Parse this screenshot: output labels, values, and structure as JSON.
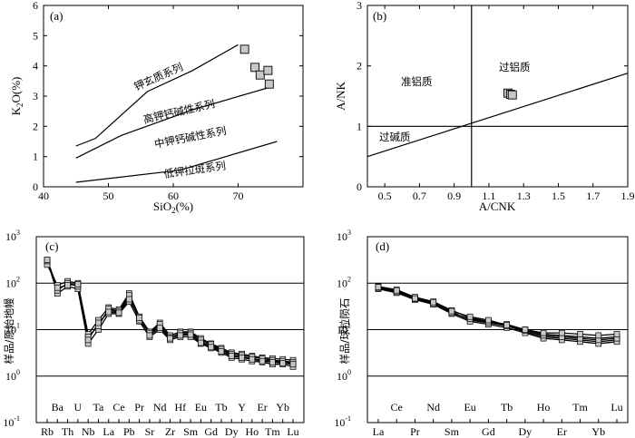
{
  "chart_data": [
    {
      "panel": "(a)",
      "type": "scatter",
      "xlabel": "SiO2(%)",
      "ylabel": "K2O(%)",
      "xlim": [
        40,
        80
      ],
      "ylim": [
        0,
        6
      ],
      "xticks": [
        40,
        50,
        60,
        70
      ],
      "yticks": [
        0,
        1,
        2,
        3,
        4,
        5,
        6
      ],
      "field_labels": [
        "钾玄质系列",
        "高钾钙碱性系列",
        "中钾钙碱性系列",
        "低钾拉斑系列"
      ],
      "boundaries": [
        {
          "points": [
            [
              45,
              1.35
            ],
            [
              48,
              1.6
            ],
            [
              56,
              3.15
            ],
            [
              63,
              3.85
            ],
            [
              70,
              4.7
            ]
          ]
        },
        {
          "points": [
            [
              45,
              0.95
            ],
            [
              52,
              1.7
            ],
            [
              63,
              2.55
            ],
            [
              75,
              3.3
            ]
          ]
        },
        {
          "points": [
            [
              45,
              0.15
            ],
            [
              61,
              0.55
            ],
            [
              76,
              1.5
            ]
          ]
        }
      ],
      "points": [
        [
          71,
          4.55
        ],
        [
          72.6,
          3.95
        ],
        [
          73.4,
          3.7
        ],
        [
          74.6,
          3.85
        ],
        [
          74.8,
          3.4
        ]
      ]
    },
    {
      "panel": "(b)",
      "type": "scatter",
      "xlabel": "A/CNK",
      "ylabel": "A/NK",
      "xlim": [
        0.4,
        1.9
      ],
      "ylim": [
        0,
        3
      ],
      "xticks": [
        0.5,
        0.7,
        0.9,
        1.1,
        1.3,
        1.5,
        1.7,
        1.9
      ],
      "yticks": [
        0,
        1,
        2,
        3
      ],
      "field_labels": [
        "准铝质",
        "过铝质",
        "过碱质"
      ],
      "boundaries": [
        {
          "points": [
            [
              1.0,
              0
            ],
            [
              1.0,
              3
            ]
          ]
        },
        {
          "points": [
            [
              0.4,
              1.0
            ],
            [
              1.9,
              1.0
            ]
          ]
        },
        {
          "points": [
            [
              0.4,
              0.5
            ],
            [
              1.9,
              1.88
            ]
          ]
        }
      ],
      "points": [
        [
          1.21,
          1.55
        ],
        [
          1.225,
          1.53
        ],
        [
          1.235,
          1.52
        ]
      ]
    },
    {
      "panel": "(c)",
      "type": "line",
      "ylabel": "样品/原始地幔",
      "yscale": "log",
      "ylim": [
        0.1,
        1000
      ],
      "yticks": [
        "10-1",
        "100",
        "101",
        "102",
        "103"
      ],
      "categories": [
        "Rb",
        "Ba",
        "Th",
        "U",
        "Nb",
        "Ta",
        "La",
        "Ce",
        "Pb",
        "Pr",
        "Sr",
        "Nd",
        "Zr",
        "Hf",
        "Sm",
        "Eu",
        "Gd",
        "Tb",
        "Dy",
        "Y",
        "Ho",
        "Er",
        "Tm",
        "Yb",
        "Lu"
      ],
      "series": [
        {
          "values": [
            310,
            60,
            85,
            75,
            5,
            10,
            22,
            22,
            40,
            15,
            7,
            10,
            6,
            7,
            7,
            5,
            4,
            3.2,
            2.5,
            2.3,
            2.1,
            2,
            1.8,
            1.8,
            1.6
          ]
        },
        {
          "values": [
            280,
            75,
            95,
            90,
            6.5,
            13,
            26,
            24,
            50,
            17,
            8,
            12,
            7,
            8,
            8,
            5.5,
            4.5,
            3.6,
            2.8,
            2.6,
            2.4,
            2.2,
            2.1,
            2,
            1.9
          ]
        },
        {
          "values": [
            250,
            90,
            110,
            100,
            8,
            16,
            30,
            27,
            60,
            19,
            9,
            14,
            7.5,
            9,
            9,
            6.5,
            5,
            4,
            3.2,
            3,
            2.7,
            2.5,
            2.4,
            2.3,
            2.2
          ]
        },
        {
          "values": [
            300,
            70,
            100,
            85,
            7,
            12,
            28,
            25,
            55,
            16,
            8.5,
            13,
            6.8,
            8.5,
            8.5,
            6,
            4.8,
            3.8,
            3,
            2.8,
            2.6,
            2.4,
            2.2,
            2.1,
            2
          ]
        },
        {
          "values": [
            320,
            80,
            90,
            95,
            6,
            14,
            24,
            23,
            45,
            18,
            7.5,
            11,
            6.5,
            7.5,
            7.8,
            5.2,
            4.2,
            3.4,
            2.7,
            2.5,
            2.3,
            2.1,
            2,
            1.9,
            1.8
          ]
        }
      ]
    },
    {
      "panel": "(d)",
      "type": "line",
      "ylabel": "样品/球粒陨石",
      "yscale": "log",
      "ylim": [
        0.1,
        1000
      ],
      "yticks": [
        "10-1",
        "100",
        "101",
        "102",
        "103"
      ],
      "categories": [
        "La",
        "Ce",
        "Pr",
        "Nd",
        "Sm",
        "Eu",
        "Gd",
        "Tb",
        "Dy",
        "Ho",
        "Er",
        "Tm",
        "Yb",
        "Lu"
      ],
      "series": [
        {
          "values": [
            80,
            68,
            48,
            38,
            24,
            16,
            14,
            12,
            9,
            7,
            6.5,
            6,
            5.5,
            6
          ]
        },
        {
          "values": [
            75,
            62,
            44,
            35,
            22,
            15,
            13,
            11,
            8.5,
            6.5,
            6,
            5.5,
            5,
            5.5
          ]
        },
        {
          "values": [
            85,
            72,
            50,
            40,
            26,
            18,
            15,
            13,
            10,
            8,
            7.5,
            7,
            6.5,
            7
          ]
        },
        {
          "values": [
            78,
            65,
            46,
            36,
            23,
            17,
            14.5,
            12,
            9.5,
            7.5,
            7,
            6.5,
            6,
            6.5
          ]
        },
        {
          "values": [
            82,
            70,
            47,
            39,
            25,
            19,
            16,
            12.5,
            10,
            8.5,
            8.5,
            8,
            7.5,
            8
          ]
        }
      ]
    }
  ]
}
